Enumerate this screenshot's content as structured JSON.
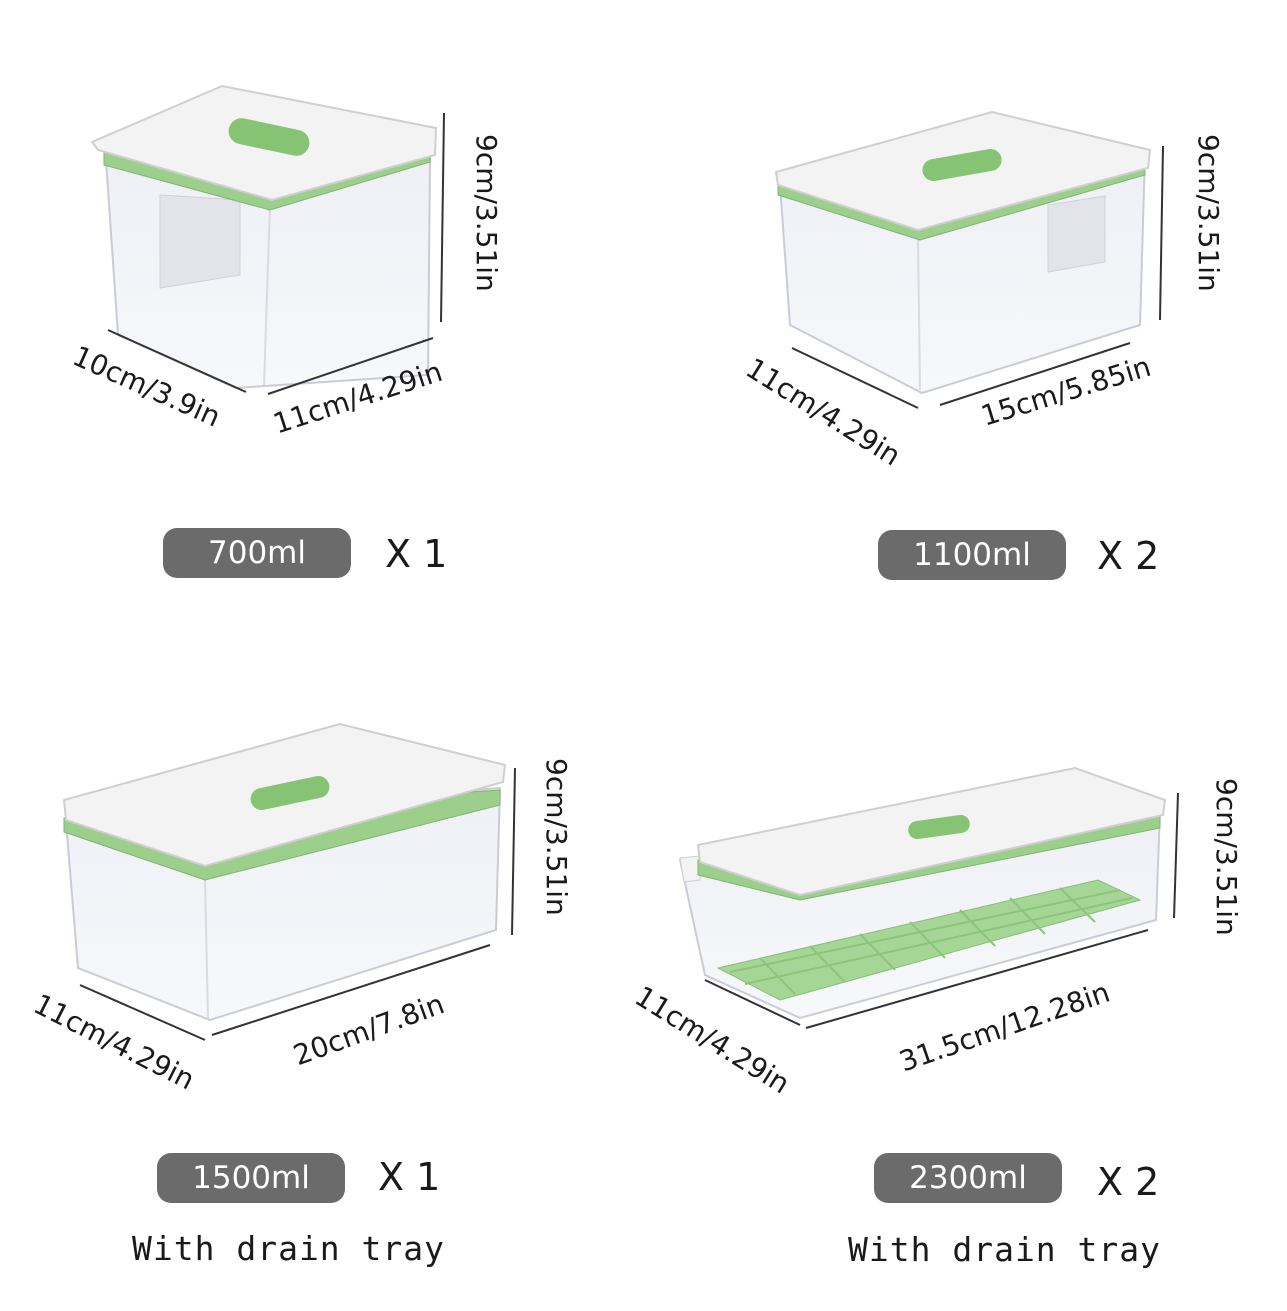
{
  "products": [
    {
      "capacity": "700ml",
      "quantity": "X 1",
      "height": "9cm/3.51in",
      "depth": "10cm/3.9in",
      "length": "11cm/4.29in",
      "note": ""
    },
    {
      "capacity": "1100ml",
      "quantity": "X 2",
      "height": "9cm/3.51in",
      "depth": "11cm/4.29in",
      "length": "15cm/5.85in",
      "note": ""
    },
    {
      "capacity": "1500ml",
      "quantity": "X 1",
      "height": "9cm/3.51in",
      "depth": "11cm/4.29in",
      "length": "20cm/7.8in",
      "note": "With drain tray"
    },
    {
      "capacity": "2300ml",
      "quantity": "X 2",
      "height": "9cm/3.51in",
      "depth": "11cm/4.29in",
      "length": "31.5cm/12.28in",
      "note": "With drain tray"
    }
  ],
  "colors": {
    "lid": "#f3f3f3",
    "seal": "#9ccf8c",
    "pill": "#6b6b6b",
    "tray": "#a6d696"
  }
}
